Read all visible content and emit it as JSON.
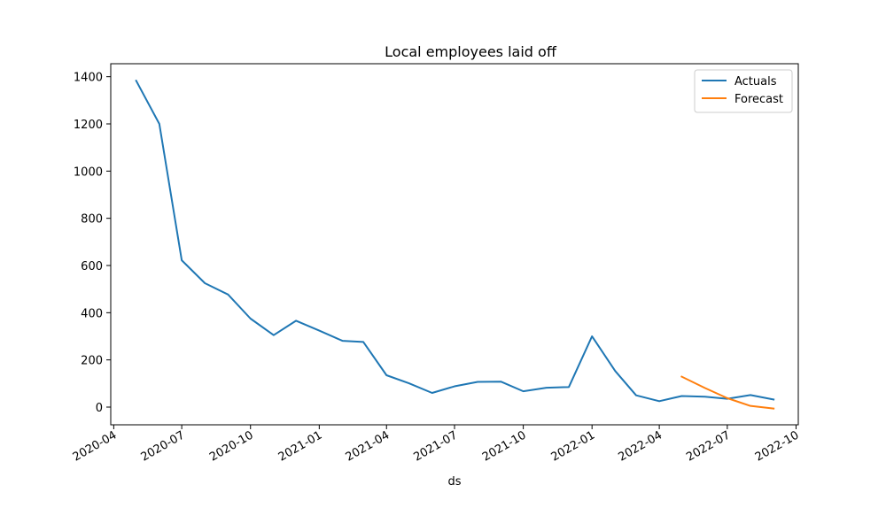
{
  "chart_data": {
    "type": "line",
    "title": "Local employees laid off",
    "xlabel": "ds",
    "ylabel": "",
    "ylim": [
      -75,
      1455
    ],
    "xlim": [
      "2020-03-28",
      "2022-10-04"
    ],
    "xticks": [
      "2020-04",
      "2020-07",
      "2020-10",
      "2021-01",
      "2021-04",
      "2021-07",
      "2021-10",
      "2022-01",
      "2022-04",
      "2022-07",
      "2022-10"
    ],
    "yticks": [
      0,
      200,
      400,
      600,
      800,
      1000,
      1200,
      1400
    ],
    "grid": false,
    "legend": "top-right",
    "series": [
      {
        "name": "Actuals",
        "color": "#1f77b4",
        "points": [
          {
            "x": "2020-05-01",
            "y": 1383
          },
          {
            "x": "2020-06-01",
            "y": 1200
          },
          {
            "x": "2020-07-01",
            "y": 622
          },
          {
            "x": "2020-08-01",
            "y": 525
          },
          {
            "x": "2020-09-01",
            "y": 477
          },
          {
            "x": "2020-10-01",
            "y": 375
          },
          {
            "x": "2020-11-01",
            "y": 305
          },
          {
            "x": "2020-12-01",
            "y": 366
          },
          {
            "x": "2021-01-01",
            "y": 324
          },
          {
            "x": "2021-02-01",
            "y": 281
          },
          {
            "x": "2021-03-01",
            "y": 276
          },
          {
            "x": "2021-04-01",
            "y": 135
          },
          {
            "x": "2021-05-01",
            "y": 101
          },
          {
            "x": "2021-06-01",
            "y": 60
          },
          {
            "x": "2021-07-01",
            "y": 88
          },
          {
            "x": "2021-08-01",
            "y": 107
          },
          {
            "x": "2021-09-01",
            "y": 108
          },
          {
            "x": "2021-10-01",
            "y": 67
          },
          {
            "x": "2021-11-01",
            "y": 82
          },
          {
            "x": "2021-12-01",
            "y": 85
          },
          {
            "x": "2022-01-01",
            "y": 300
          },
          {
            "x": "2022-02-01",
            "y": 153
          },
          {
            "x": "2022-03-01",
            "y": 50
          },
          {
            "x": "2022-04-01",
            "y": 25
          },
          {
            "x": "2022-05-01",
            "y": 47
          },
          {
            "x": "2022-06-01",
            "y": 44
          },
          {
            "x": "2022-07-01",
            "y": 35
          },
          {
            "x": "2022-08-01",
            "y": 51
          },
          {
            "x": "2022-09-01",
            "y": 32
          }
        ]
      },
      {
        "name": "Forecast",
        "color": "#ff7f0e",
        "points": [
          {
            "x": "2022-05-01",
            "y": 129
          },
          {
            "x": "2022-06-01",
            "y": 81
          },
          {
            "x": "2022-07-01",
            "y": 38
          },
          {
            "x": "2022-08-01",
            "y": 5
          },
          {
            "x": "2022-09-01",
            "y": -6
          }
        ]
      }
    ]
  }
}
